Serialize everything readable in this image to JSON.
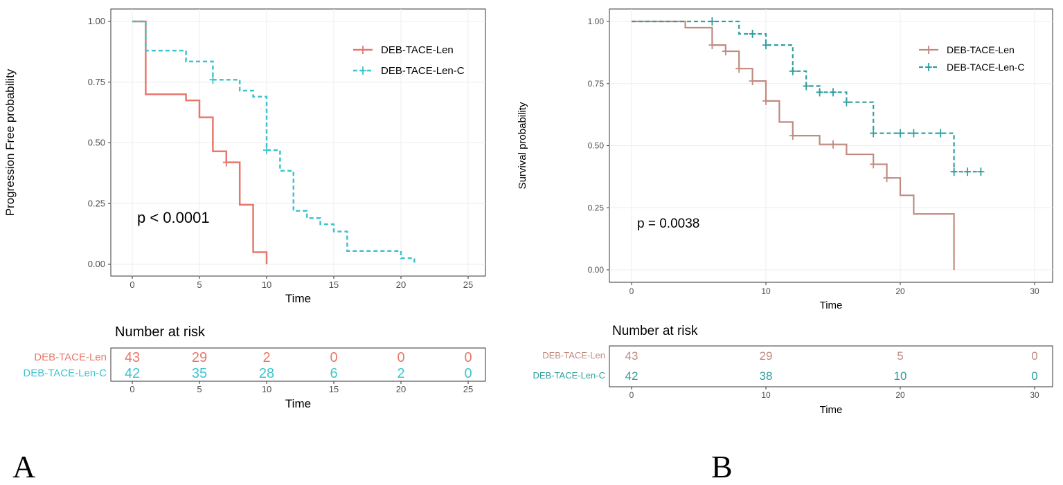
{
  "colors": {
    "a_len": "#E8776B",
    "a_lenc": "#3DC4CC",
    "b_len": "#C08A80",
    "b_lenc": "#2E9E9E"
  },
  "panel_letters": [
    "A",
    "B"
  ],
  "chart_data": [
    {
      "type": "line",
      "chart_kind": "kaplan-meier",
      "ylabel": "Progression Free probability",
      "xlabel": "Time",
      "xlim": [
        0,
        25
      ],
      "ylim": [
        0,
        1
      ],
      "xticks": [
        0,
        5,
        10,
        15,
        20,
        25
      ],
      "yticks": [
        "0.00",
        "0.25",
        "0.50",
        "0.75",
        "1.00"
      ],
      "pvalue": "p < 0.0001",
      "legend_position": "top-right",
      "series": [
        {
          "name": "DEB-TACE-Len",
          "line_style": "solid",
          "steps": [
            [
              0,
              1.0
            ],
            [
              1,
              0.7
            ],
            [
              4,
              0.675
            ],
            [
              5,
              0.605
            ],
            [
              6,
              0.465
            ],
            [
              7,
              0.42
            ],
            [
              8,
              0.245
            ],
            [
              9,
              0.05
            ],
            [
              10,
              0.0
            ]
          ],
          "censor": [
            [
              7,
              0.42
            ]
          ]
        },
        {
          "name": "DEB-TACE-Len-C",
          "line_style": "dashed",
          "steps": [
            [
              0,
              1.0
            ],
            [
              1,
              0.88
            ],
            [
              4,
              0.835
            ],
            [
              6,
              0.76
            ],
            [
              8,
              0.715
            ],
            [
              9,
              0.69
            ],
            [
              10,
              0.47
            ],
            [
              11,
              0.385
            ],
            [
              12,
              0.22
            ],
            [
              13,
              0.19
            ],
            [
              14,
              0.165
            ],
            [
              15,
              0.135
            ],
            [
              16,
              0.055
            ],
            [
              20,
              0.025
            ],
            [
              21,
              0.0
            ]
          ],
          "censor": [
            [
              6,
              0.76
            ],
            [
              10,
              0.47
            ]
          ]
        }
      ],
      "risk_table": {
        "title": "Number at risk",
        "xlabel": "Time",
        "times": [
          0,
          5,
          10,
          15,
          20,
          25
        ],
        "rows": [
          {
            "name": "DEB-TACE-Len",
            "counts": [
              "43",
              "29",
              "2",
              "0",
              "0",
              "0"
            ]
          },
          {
            "name": "DEB-TACE-Len-C",
            "counts": [
              "42",
              "35",
              "28",
              "6",
              "2",
              "0"
            ]
          }
        ]
      }
    },
    {
      "type": "line",
      "chart_kind": "kaplan-meier",
      "ylabel": "Survival probability",
      "xlabel": "Time",
      "xlim": [
        0,
        30
      ],
      "ylim": [
        0,
        1
      ],
      "xticks": [
        0,
        10,
        20,
        30
      ],
      "yticks": [
        "0.00",
        "0.25",
        "0.50",
        "0.75",
        "1.00"
      ],
      "pvalue": "p = 0.0038",
      "legend_position": "top-right",
      "series": [
        {
          "name": "DEB-TACE-Len",
          "line_style": "solid",
          "steps": [
            [
              0,
              1.0
            ],
            [
              4,
              0.975
            ],
            [
              6,
              0.905
            ],
            [
              7,
              0.88
            ],
            [
              8,
              0.81
            ],
            [
              9,
              0.76
            ],
            [
              10,
              0.68
            ],
            [
              11,
              0.595
            ],
            [
              12,
              0.54
            ],
            [
              14,
              0.505
            ],
            [
              16,
              0.465
            ],
            [
              18,
              0.425
            ],
            [
              19,
              0.37
            ],
            [
              20,
              0.3
            ],
            [
              21,
              0.225
            ],
            [
              24,
              0.225
            ],
            [
              24,
              0.0
            ]
          ],
          "censor": [
            [
              6,
              0.905
            ],
            [
              7,
              0.88
            ],
            [
              8,
              0.81
            ],
            [
              9,
              0.76
            ],
            [
              10,
              0.68
            ],
            [
              12,
              0.54
            ],
            [
              15,
              0.505
            ],
            [
              18,
              0.425
            ],
            [
              19,
              0.37
            ]
          ]
        },
        {
          "name": "DEB-TACE-Len-C",
          "line_style": "dashed",
          "steps": [
            [
              0,
              1.0
            ],
            [
              8,
              0.95
            ],
            [
              10,
              0.905
            ],
            [
              12,
              0.8
            ],
            [
              13,
              0.74
            ],
            [
              14,
              0.715
            ],
            [
              16,
              0.675
            ],
            [
              18,
              0.55
            ],
            [
              24,
              0.395
            ],
            [
              26,
              0.395
            ]
          ],
          "censor": [
            [
              6,
              1.0
            ],
            [
              9,
              0.95
            ],
            [
              10,
              0.905
            ],
            [
              12,
              0.8
            ],
            [
              13,
              0.74
            ],
            [
              14,
              0.715
            ],
            [
              15,
              0.715
            ],
            [
              16,
              0.675
            ],
            [
              18,
              0.55
            ],
            [
              20,
              0.55
            ],
            [
              21,
              0.55
            ],
            [
              23,
              0.55
            ],
            [
              24,
              0.395
            ],
            [
              25,
              0.395
            ],
            [
              26,
              0.395
            ]
          ]
        }
      ],
      "risk_table": {
        "title": "Number at risk",
        "xlabel": "Time",
        "times": [
          0,
          10,
          20,
          30
        ],
        "rows": [
          {
            "name": "DEB-TACE-Len",
            "counts": [
              "43",
              "29",
              "5",
              "0"
            ]
          },
          {
            "name": "DEB-TACE-Len-C",
            "counts": [
              "42",
              "38",
              "10",
              "0"
            ]
          }
        ]
      }
    }
  ]
}
